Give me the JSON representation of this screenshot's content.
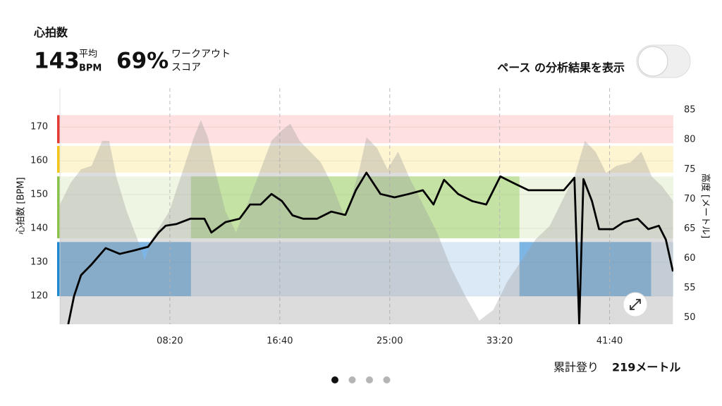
{
  "summary": {
    "title": "心拍数",
    "average": {
      "value": "143",
      "label": "平均",
      "unit": "BPM"
    },
    "score": {
      "value": "69%",
      "label_lines": [
        "ワークアウト",
        "スコア"
      ]
    }
  },
  "toggle": {
    "label": "ペース の分析結果を表示",
    "on": false
  },
  "footer": {
    "label": "累計登り",
    "value": "219メートル"
  },
  "pager": {
    "count": 4,
    "active": 0
  },
  "chart_data": {
    "type": "line",
    "ylabel": "心拍数 [BPM]",
    "y2label": "高度 [メートル]",
    "xlim": [
      0,
      2790
    ],
    "xticks": [
      {
        "value": 500,
        "label": "08:20"
      },
      {
        "value": 1000,
        "label": "16:40"
      },
      {
        "value": 1500,
        "label": "25:00"
      },
      {
        "value": 2000,
        "label": "33:20"
      },
      {
        "value": 2500,
        "label": "41:40"
      }
    ],
    "ylim": [
      111.7,
      181.5
    ],
    "yticks": [
      120,
      130,
      140,
      150,
      160,
      170
    ],
    "y2lim": [
      48.9,
      88.7
    ],
    "y2ticks": [
      50,
      55,
      60,
      65,
      70,
      75,
      80,
      85
    ],
    "grid": true,
    "zones": [
      {
        "min": 165.2,
        "max": 173.5,
        "color": "#e53935",
        "band_color": "#fde0df"
      },
      {
        "min": 156.5,
        "max": 164.4,
        "color": "#f5c518",
        "band_color": "#fdf4d2"
      },
      {
        "min": 137.1,
        "max": 155.4,
        "color": "#8bc34a",
        "band_color": "#eef5e3"
      },
      {
        "min": 120,
        "max": 136,
        "color": "#1e88d0",
        "band_color": "#dae9f5"
      }
    ],
    "highlights": [
      {
        "zone": 2,
        "start": 596,
        "end": 2090,
        "color": "#c4e2a3"
      },
      {
        "zone": 3,
        "start": 0,
        "end": 596,
        "color": "#7db6e4"
      },
      {
        "zone": 3,
        "start": 2090,
        "end": 2689,
        "color": "#7db6e4"
      }
    ],
    "series": [
      {
        "kind": "area",
        "axis": "y2",
        "color": "#9a9a9a",
        "x": [
          0,
          48,
          96,
          144,
          192,
          224,
          256,
          304,
          353,
          385,
          417,
          497,
          561,
          609,
          641,
          673,
          705,
          753,
          801,
          865,
          913,
          962,
          1010,
          1048,
          1090,
          1138,
          1186,
          1234,
          1298,
          1362,
          1394,
          1442,
          1490,
          1538,
          1587,
          1651,
          1715,
          1779,
          1843,
          1907,
          1971,
          2035,
          2099,
          2163,
          2228,
          2292,
          2340,
          2388,
          2436,
          2484,
          2532,
          2596,
          2644,
          2692,
          2740,
          2788
        ],
        "values": [
          69.1,
          72.7,
          75,
          75.6,
          79.8,
          79.8,
          73.8,
          67.9,
          63.2,
          59.6,
          63.2,
          67.9,
          75,
          80.4,
          83.3,
          80.4,
          75,
          67.9,
          64.4,
          70.3,
          75,
          79.8,
          81.6,
          82.7,
          79.8,
          78,
          76.2,
          72.7,
          66.7,
          75,
          80.4,
          78.6,
          75,
          78,
          73.8,
          69.1,
          64.4,
          58.4,
          53.7,
          49.5,
          51.3,
          56.1,
          59.6,
          63.2,
          65.5,
          70.3,
          73.8,
          79.8,
          78,
          74.4,
          75.6,
          76.2,
          78,
          73.8,
          72.1,
          69.7
        ]
      },
      {
        "kind": "line",
        "axis": "y",
        "color": "#000000",
        "x": [
          38,
          64,
          96,
          144,
          208,
          272,
          337,
          401,
          449,
          481,
          529,
          593,
          657,
          689,
          753,
          817,
          865,
          913,
          962,
          1010,
          1058,
          1106,
          1170,
          1234,
          1298,
          1346,
          1394,
          1458,
          1522,
          1587,
          1651,
          1699,
          1747,
          1811,
          1875,
          1939,
          2003,
          2067,
          2131,
          2228,
          2292,
          2340,
          2362,
          2381,
          2420,
          2452,
          2516,
          2564,
          2628,
          2676,
          2724,
          2756,
          2788
        ],
        "values": [
          111.7,
          120,
          126.2,
          129.4,
          134.2,
          132.5,
          133.5,
          134.6,
          138.8,
          140.8,
          141.3,
          142.9,
          142.9,
          138.8,
          141.9,
          142.9,
          147.1,
          147.1,
          150.2,
          148.1,
          143.9,
          142.9,
          142.9,
          145,
          144,
          151.3,
          156.5,
          150.2,
          149.2,
          150.2,
          151.3,
          147.1,
          154.4,
          150.2,
          148.1,
          147.1,
          155.4,
          153.3,
          151.3,
          151.3,
          151.3,
          155,
          111.7,
          154.6,
          148.1,
          139.8,
          139.8,
          141.9,
          142.9,
          139.8,
          140.8,
          136.7,
          127.3
        ]
      }
    ]
  }
}
